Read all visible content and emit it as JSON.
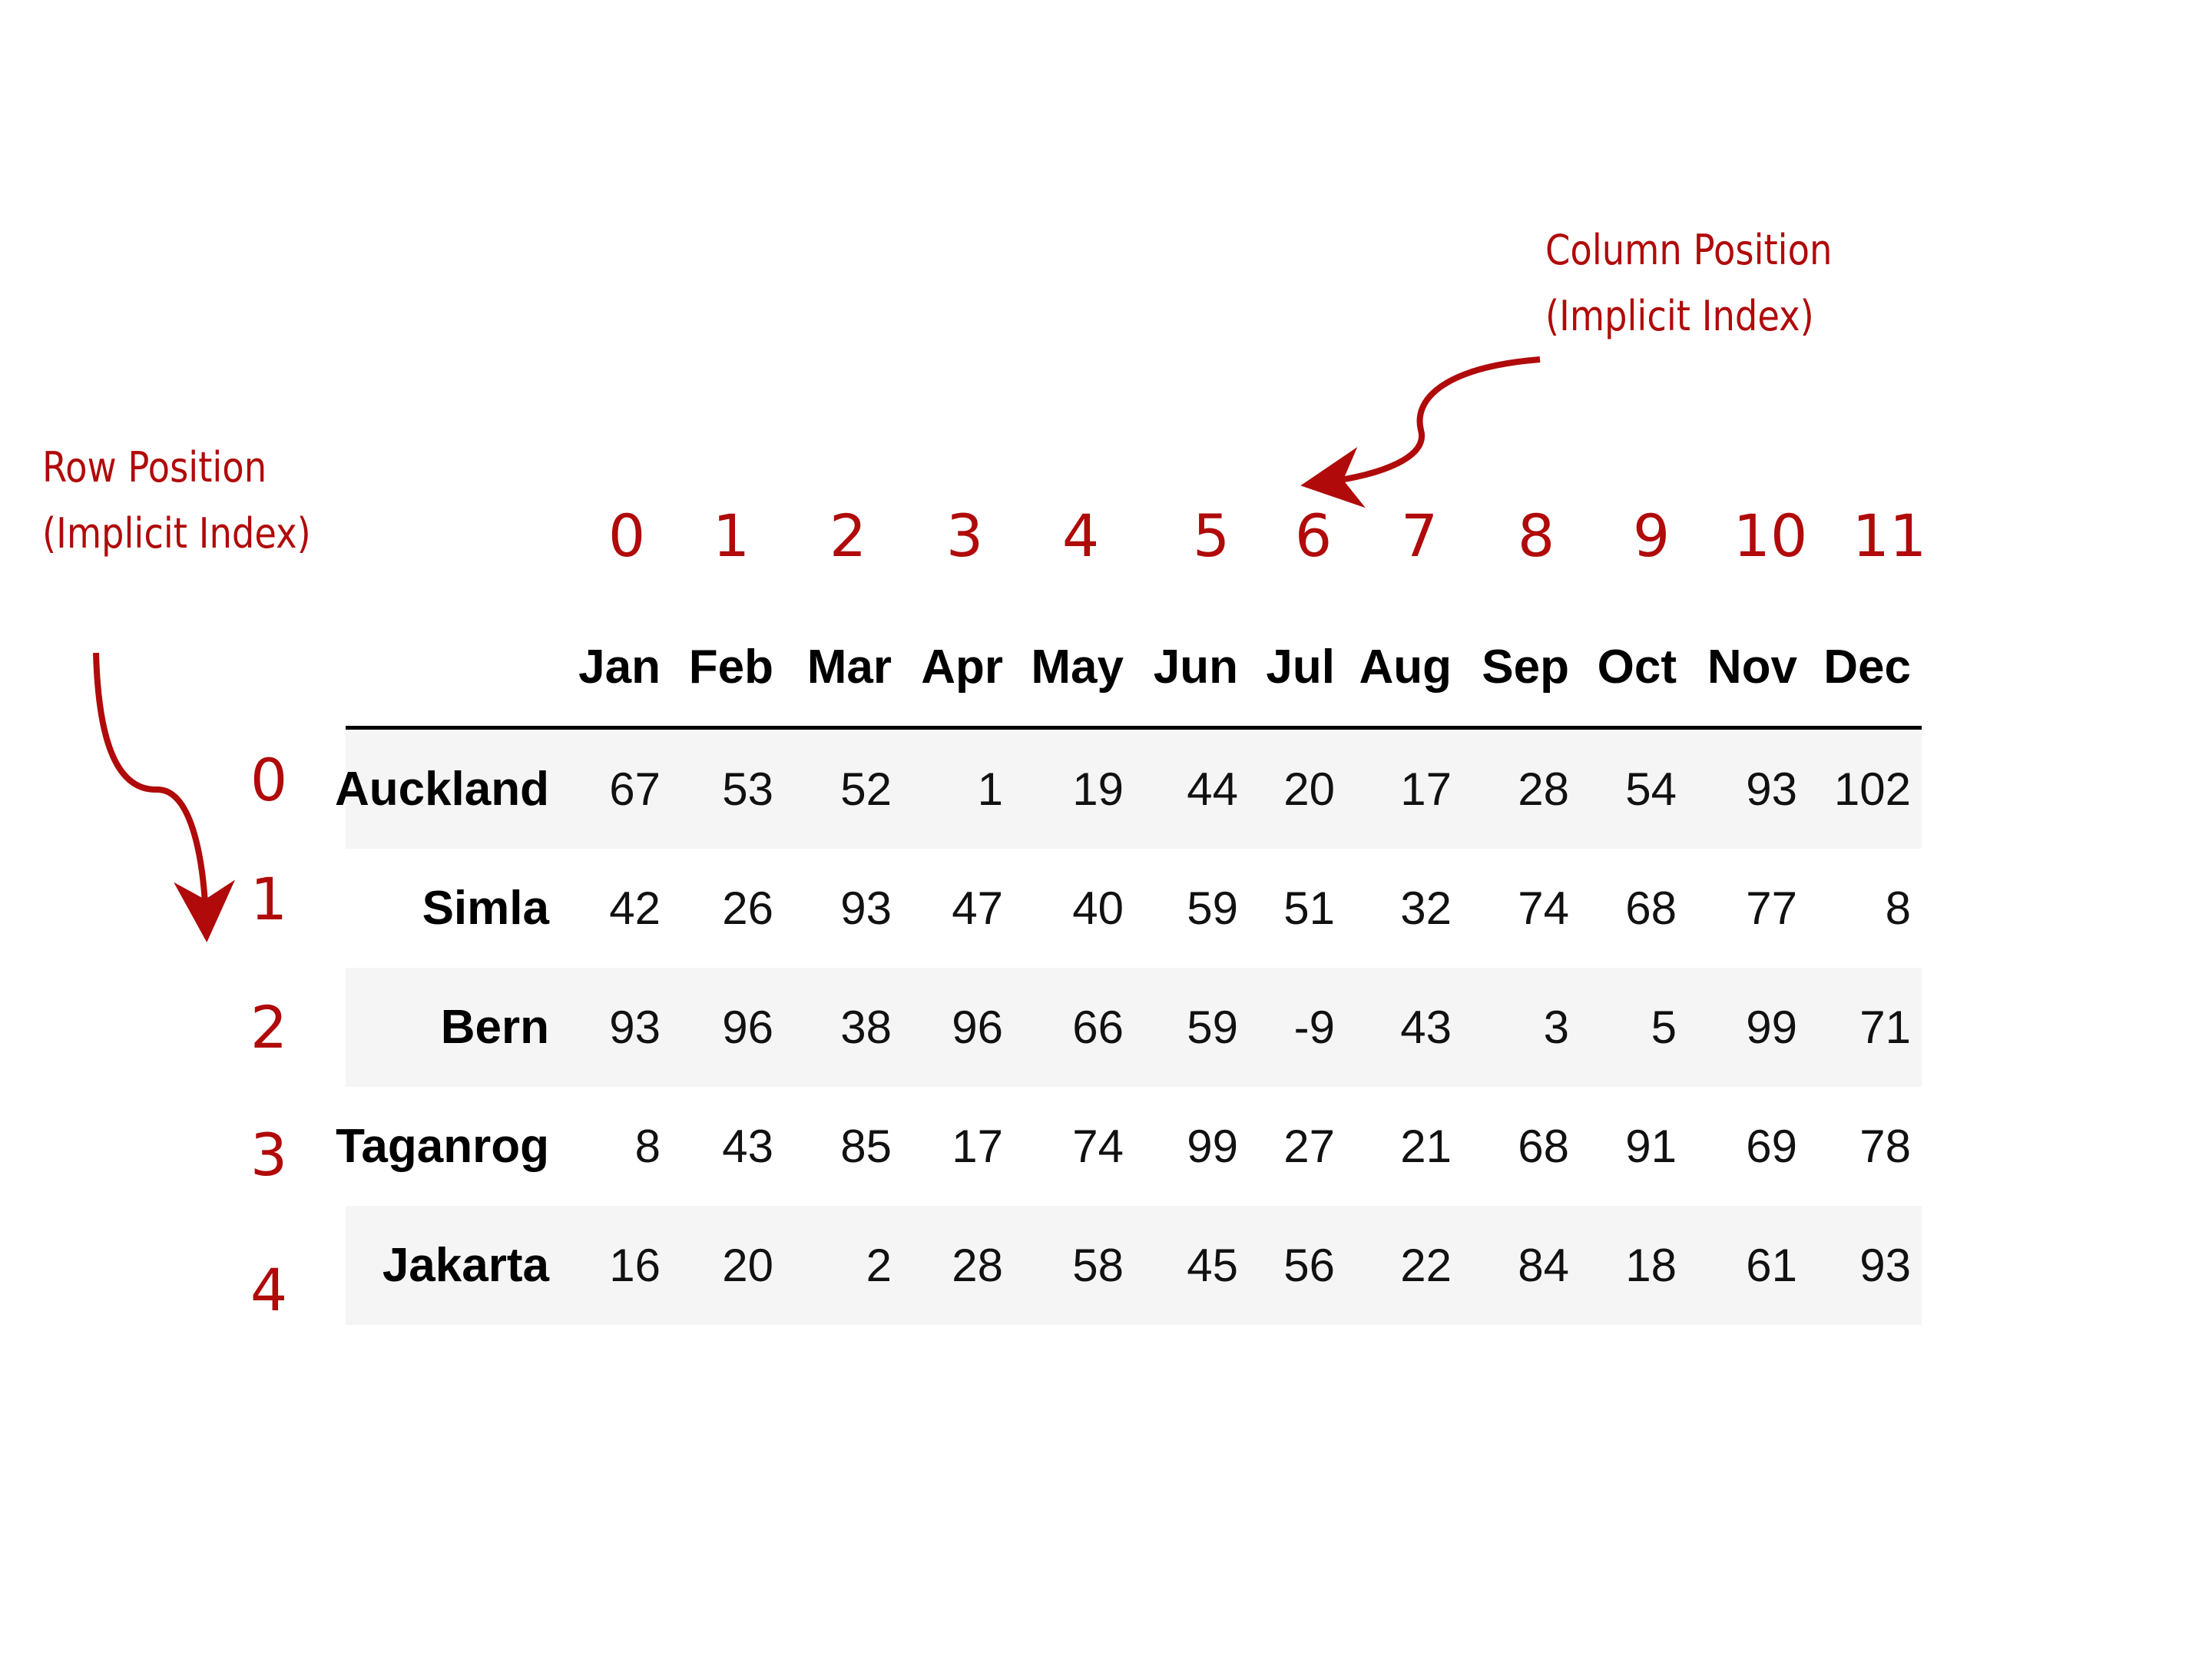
{
  "annotations": {
    "column_position": [
      "Column Position",
      "(Implicit Index)"
    ],
    "row_position": [
      "Row Position",
      "(Implicit Index)"
    ]
  },
  "column_positions": [
    "0",
    "1",
    "2",
    "3",
    "4",
    "5",
    "6",
    "7",
    "8",
    "9",
    "10",
    "11"
  ],
  "row_positions": [
    "0",
    "1",
    "2",
    "3",
    "4"
  ],
  "table": {
    "columns": [
      "Jan",
      "Feb",
      "Mar",
      "Apr",
      "May",
      "Jun",
      "Jul",
      "Aug",
      "Sep",
      "Oct",
      "Nov",
      "Dec"
    ],
    "rows": [
      {
        "label": "Auckland",
        "values": [
          "67",
          "53",
          "52",
          "1",
          "19",
          "44",
          "20",
          "17",
          "28",
          "54",
          "93",
          "102"
        ]
      },
      {
        "label": "Simla",
        "values": [
          "42",
          "26",
          "93",
          "47",
          "40",
          "59",
          "51",
          "32",
          "74",
          "68",
          "77",
          "8"
        ]
      },
      {
        "label": "Bern",
        "values": [
          "93",
          "96",
          "38",
          "96",
          "66",
          "59",
          "-9",
          "43",
          "3",
          "5",
          "99",
          "71"
        ]
      },
      {
        "label": "Taganrog",
        "values": [
          "8",
          "43",
          "85",
          "17",
          "74",
          "99",
          "27",
          "21",
          "68",
          "91",
          "69",
          "78"
        ]
      },
      {
        "label": "Jakarta",
        "values": [
          "16",
          "20",
          "2",
          "28",
          "58",
          "45",
          "56",
          "22",
          "84",
          "18",
          "61",
          "93"
        ]
      }
    ]
  },
  "colors": {
    "accent": "#b00a0a",
    "row_shade": "#f5f5f5"
  }
}
